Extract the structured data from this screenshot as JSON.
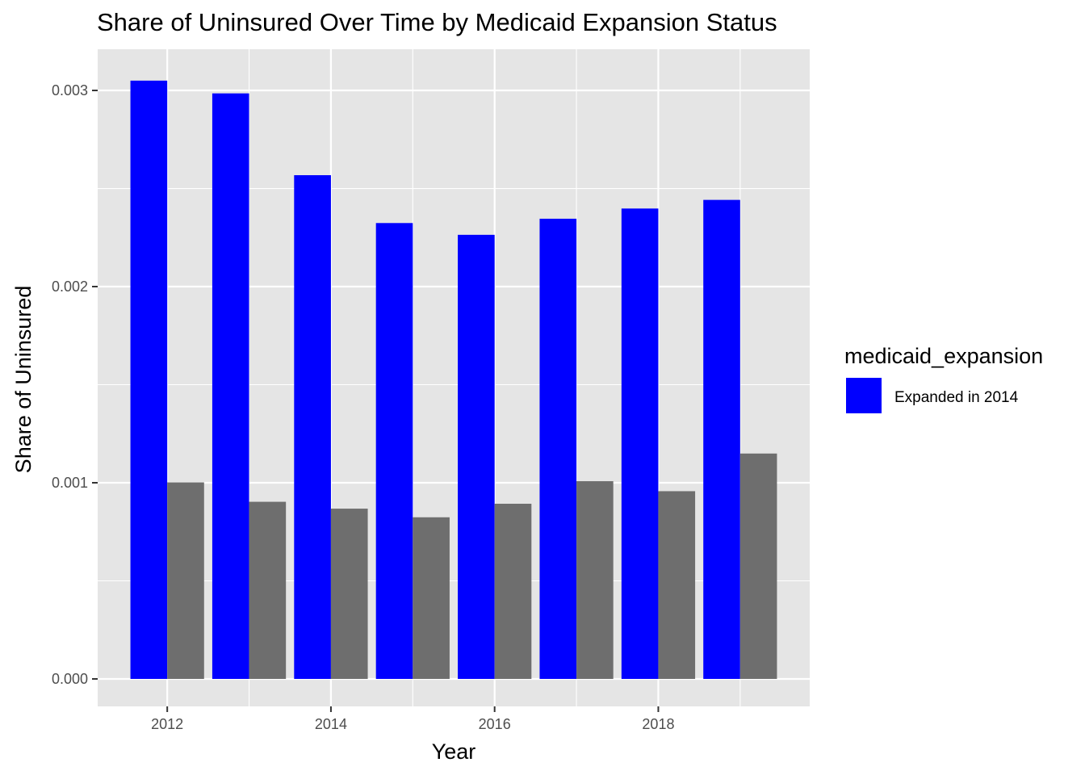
{
  "chart_data": {
    "type": "bar",
    "title": "Share of Uninsured Over Time by Medicaid Expansion Status",
    "xlabel": "Year",
    "ylabel": "Share of Uninsured",
    "categories": [
      2012,
      2013,
      2014,
      2015,
      2016,
      2017,
      2018,
      2019
    ],
    "x_tick_labels": [
      "2012",
      "2014",
      "2016",
      "2018"
    ],
    "x_tick_values": [
      2012,
      2014,
      2016,
      2018
    ],
    "y_tick_labels": [
      "0.000",
      "0.001",
      "0.002",
      "0.003"
    ],
    "y_tick_values": [
      0,
      0.001,
      0.002,
      0.003
    ],
    "ylim": [
      -0.00014,
      0.00321
    ],
    "xlim": [
      2011.15,
      2019.85
    ],
    "grid": true,
    "legend_position": "right",
    "legend_title": "medicaid_expansion",
    "series": [
      {
        "name": "Expanded in 2014",
        "color": "#0000ff",
        "values": [
          0.00305,
          0.002985,
          0.002568,
          0.002324,
          0.002264,
          0.002346,
          0.002398,
          0.002442
        ]
      },
      {
        "color": "#6e6e6e",
        "values": [
          0.001002,
          0.000903,
          0.000868,
          0.000824,
          0.000893,
          0.001008,
          0.000957,
          0.001149
        ]
      }
    ],
    "panel_background": "#e5e5e5",
    "grid_color": "#ffffff"
  }
}
